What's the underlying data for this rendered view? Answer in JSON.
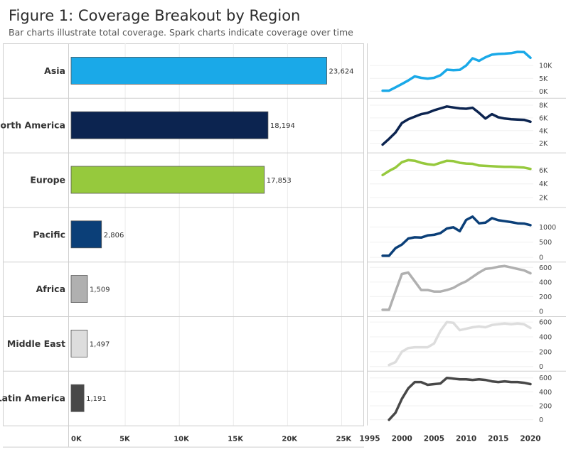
{
  "header": {
    "title": "Figure 1: Coverage Breakout by Region",
    "subtitle": "Bar charts illustrate total coverage. Spark charts indicate coverage over time"
  },
  "chart_data": [
    {
      "type": "bar",
      "orientation": "horizontal",
      "title": "Coverage Breakout by Region",
      "categories": [
        "Asia",
        "North America",
        "Europe",
        "Pacific",
        "Africa",
        "Middle East",
        "Latin America"
      ],
      "values": [
        23624,
        18194,
        17853,
        2806,
        1509,
        1497,
        1191
      ],
      "value_labels": [
        "23,624",
        "18,194",
        "17,853",
        "2,806",
        "1,509",
        "1,497",
        "1,191"
      ],
      "colors": [
        "#1aa9e8",
        "#0c2450",
        "#96c93d",
        "#0b3f78",
        "#b0b0b0",
        "#dddddd",
        "#484848"
      ],
      "xlim": [
        0,
        26000
      ],
      "xticks": [
        0,
        5000,
        10000,
        15000,
        20000,
        25000
      ],
      "xtick_labels": [
        "0K",
        "5K",
        "10K",
        "15K",
        "20K",
        "25K"
      ],
      "grid": true
    },
    {
      "type": "line",
      "title": "Spark charts: coverage over time",
      "x_axis": {
        "ticks": [
          1995,
          2000,
          2005,
          2010,
          2015,
          2020
        ],
        "tick_labels": [
          "1995",
          "2000",
          "2005",
          "2010",
          "2015",
          "2020"
        ],
        "range": [
          1995,
          2021
        ]
      },
      "series": [
        {
          "name": "Asia",
          "color": "#1aa9e8",
          "x": [
            1997,
            1998,
            1999,
            2000,
            2001,
            2002,
            2003,
            2004,
            2005,
            2006,
            2007,
            2008,
            2009,
            2010,
            2011,
            2012,
            2013,
            2014,
            2015,
            2016,
            2017,
            2018,
            2019,
            2020
          ],
          "values": [
            200,
            200,
            1500,
            2800,
            4200,
            5800,
            5200,
            4900,
            5200,
            6200,
            8400,
            8200,
            8300,
            10000,
            12800,
            11800,
            13200,
            14200,
            14500,
            14600,
            14800,
            15300,
            15200,
            13000
          ],
          "ylim": [
            -1500,
            17500
          ],
          "yticks": [
            0,
            5000,
            10000
          ],
          "ytick_labels": [
            "0K",
            "5K",
            "10K"
          ]
        },
        {
          "name": "North America",
          "color": "#0c2450",
          "x": [
            1997,
            1998,
            1999,
            2000,
            2001,
            2002,
            2003,
            2004,
            2005,
            2006,
            2007,
            2008,
            2009,
            2010,
            2011,
            2012,
            2013,
            2014,
            2015,
            2016,
            2017,
            2018,
            2019,
            2020
          ],
          "values": [
            1800,
            2700,
            3700,
            5200,
            5800,
            6200,
            6600,
            6800,
            7200,
            7500,
            7800,
            7650,
            7500,
            7450,
            7600,
            6800,
            5900,
            6600,
            6100,
            5900,
            5800,
            5750,
            5700,
            5400
          ],
          "ylim": [
            1000,
            8700
          ],
          "yticks": [
            2000,
            4000,
            6000,
            8000
          ],
          "ytick_labels": [
            "2K",
            "4K",
            "6K",
            "8K"
          ]
        },
        {
          "name": "Europe",
          "color": "#96c93d",
          "x": [
            1997,
            1998,
            1999,
            2000,
            2001,
            2002,
            2003,
            2004,
            2005,
            2006,
            2007,
            2008,
            2009,
            2010,
            2011,
            2012,
            2013,
            2014,
            2015,
            2016,
            2017,
            2018,
            2019,
            2020
          ],
          "values": [
            5300,
            5900,
            6400,
            7200,
            7500,
            7400,
            7100,
            6900,
            6800,
            7100,
            7400,
            7350,
            7100,
            7000,
            6950,
            6700,
            6650,
            6600,
            6550,
            6500,
            6500,
            6450,
            6400,
            6200
          ],
          "ylim": [
            1000,
            8200
          ],
          "yticks": [
            2000,
            4000,
            6000
          ],
          "ytick_labels": [
            "2K",
            "4K",
            "6K"
          ]
        },
        {
          "name": "Pacific",
          "color": "#0b3f78",
          "x": [
            1997,
            1998,
            1999,
            2000,
            2001,
            2002,
            2003,
            2004,
            2005,
            2006,
            2007,
            2008,
            2009,
            2010,
            2011,
            2012,
            2013,
            2014,
            2015,
            2016,
            2017,
            2018,
            2019,
            2020
          ],
          "values": [
            50,
            50,
            300,
            420,
            620,
            660,
            650,
            720,
            740,
            800,
            950,
            990,
            860,
            1230,
            1340,
            1120,
            1140,
            1290,
            1220,
            1190,
            1160,
            1120,
            1110,
            1060
          ],
          "ylim": [
            -50,
            1560
          ],
          "yticks": [
            0,
            500,
            1000
          ],
          "ytick_labels": [
            "0",
            "500",
            "1000"
          ]
        },
        {
          "name": "Africa",
          "color": "#b0b0b0",
          "x": [
            1997,
            1998,
            1999,
            2000,
            2001,
            2002,
            2003,
            2004,
            2005,
            2006,
            2007,
            2008,
            2009,
            2010,
            2011,
            2012,
            2013,
            2014,
            2015,
            2016,
            2017,
            2018,
            2019,
            2020
          ],
          "values": [
            20,
            20,
            270,
            510,
            530,
            410,
            290,
            290,
            270,
            270,
            290,
            320,
            370,
            410,
            470,
            530,
            580,
            590,
            610,
            620,
            600,
            580,
            560,
            520
          ],
          "ylim": [
            -30,
            640
          ],
          "yticks": [
            0,
            200,
            400,
            600
          ],
          "ytick_labels": [
            "0",
            "200",
            "400",
            "600"
          ]
        },
        {
          "name": "Middle East",
          "color": "#dddddd",
          "x": [
            1998,
            1999,
            2000,
            2001,
            2002,
            2003,
            2004,
            2005,
            2006,
            2007,
            2008,
            2009,
            2010,
            2011,
            2012,
            2013,
            2014,
            2015,
            2016,
            2017,
            2018,
            2019,
            2020
          ],
          "values": [
            20,
            60,
            200,
            250,
            260,
            260,
            260,
            310,
            480,
            600,
            590,
            490,
            510,
            530,
            540,
            530,
            560,
            570,
            580,
            570,
            580,
            570,
            520
          ],
          "ylim": [
            -20,
            640
          ],
          "yticks": [
            0,
            200,
            400,
            600
          ],
          "ytick_labels": [
            "0",
            "200",
            "400",
            "600"
          ]
        },
        {
          "name": "Latin America",
          "color": "#484848",
          "x": [
            1998,
            1999,
            2000,
            2001,
            2002,
            2003,
            2004,
            2005,
            2006,
            2007,
            2008,
            2009,
            2010,
            2011,
            2012,
            2013,
            2014,
            2015,
            2016,
            2017,
            2018,
            2019,
            2020
          ],
          "values": [
            0,
            100,
            300,
            450,
            540,
            540,
            500,
            510,
            520,
            600,
            590,
            580,
            580,
            570,
            580,
            570,
            550,
            540,
            550,
            540,
            540,
            530,
            510
          ],
          "ylim": [
            -40,
            660
          ],
          "yticks": [
            0,
            200,
            400,
            600
          ],
          "ytick_labels": [
            "0",
            "200",
            "400",
            "600"
          ]
        }
      ]
    }
  ]
}
